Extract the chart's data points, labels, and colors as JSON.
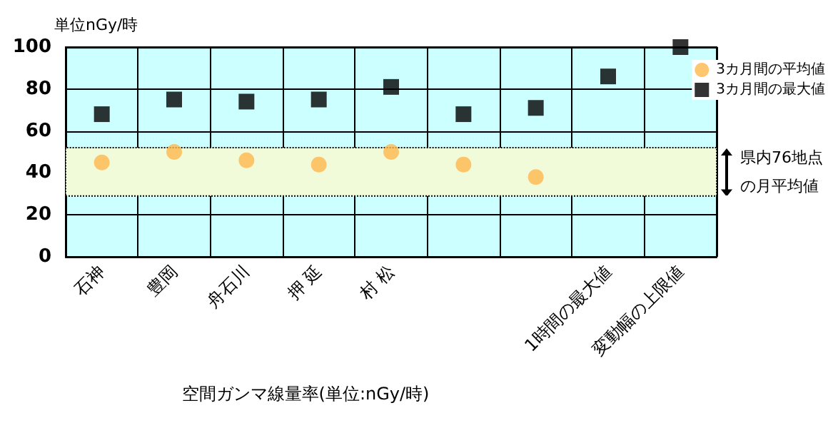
{
  "chart_data": {
    "type": "scatter",
    "ylabel": "単位nGy/時",
    "xlabel": "空間ガンマ線量率(単位:nGy/時)",
    "categories": [
      "石神",
      "豊岡",
      "舟石川",
      "押 延",
      "村 松",
      null,
      null,
      "1時間の最大値",
      "変動幅の上限値"
    ],
    "series": [
      {
        "name": "3カ月間の平均値",
        "color": "#ffb84d",
        "marker": "circle",
        "values": [
          45,
          50,
          46,
          44,
          50,
          44,
          38,
          null,
          null
        ]
      },
      {
        "name": "3カ月間の最大値",
        "color": "#000000",
        "marker": "square",
        "values": [
          68,
          75,
          74,
          75,
          81,
          68,
          71,
          86,
          100
        ]
      }
    ],
    "ylim": [
      0,
      100
    ],
    "yticks": [
      0,
      20,
      40,
      60,
      80,
      100
    ],
    "grid": true,
    "legend": "top right",
    "bands": [
      {
        "axis": "y",
        "from": 29,
        "to": 52,
        "label": "県内76地点の月平均値",
        "color": "#f2fbd9"
      }
    ]
  }
}
